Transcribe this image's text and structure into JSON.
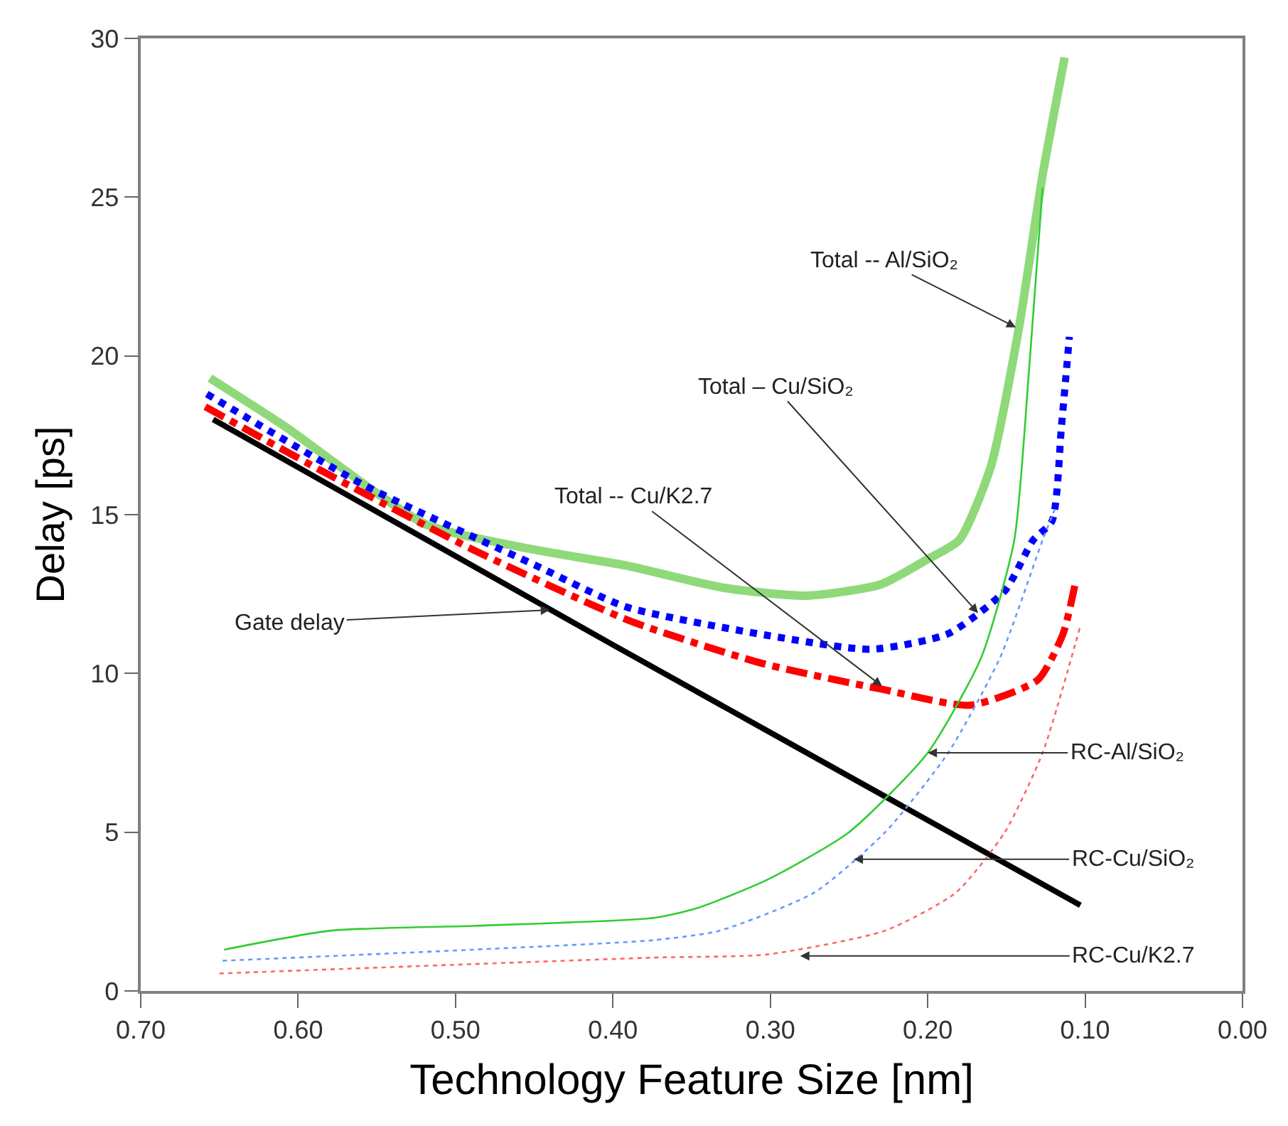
{
  "chart_data": {
    "type": "line",
    "xlabel": "Technology Feature Size [nm]",
    "ylabel": "Delay [ps]",
    "xlim": [
      0.7,
      0.0
    ],
    "ylim": [
      0,
      30
    ],
    "xticks": [
      {
        "value": 0.7,
        "label": "0.70"
      },
      {
        "value": 0.6,
        "label": "0.60"
      },
      {
        "value": 0.5,
        "label": "0.50"
      },
      {
        "value": 0.4,
        "label": "0.40"
      },
      {
        "value": 0.3,
        "label": "0.30"
      },
      {
        "value": 0.2,
        "label": "0.20"
      },
      {
        "value": 0.1,
        "label": "0.10"
      },
      {
        "value": 0.0,
        "label": "0.00"
      }
    ],
    "yticks": [
      0,
      5,
      10,
      15,
      20,
      25,
      30
    ],
    "marker": "none",
    "series": [
      {
        "color": "#000000",
        "line_style": "solid",
        "x": [
          0.654,
          0.4,
          0.103
        ],
        "values": [
          18.0,
          10.9,
          2.7
        ]
      },
      {
        "color": "#8fd97a",
        "line_style": "solid",
        "x": [
          0.656,
          0.609,
          0.519,
          0.45,
          0.392,
          0.33,
          0.277,
          0.23,
          0.2,
          0.18,
          0.16,
          0.142,
          0.127,
          0.113
        ],
        "values": [
          19.3,
          17.8,
          14.7,
          13.9,
          13.4,
          12.7,
          12.45,
          12.8,
          13.6,
          14.2,
          16.5,
          20.9,
          25.7,
          29.4
        ]
      },
      {
        "color": "#0000ff",
        "line_style": "dotted",
        "x": [
          0.658,
          0.557,
          0.449,
          0.392,
          0.302,
          0.236,
          0.187,
          0.151,
          0.133,
          0.121,
          0.115,
          0.11
        ],
        "values": [
          18.8,
          15.9,
          13.4,
          12.1,
          11.2,
          10.76,
          11.25,
          12.6,
          14.2,
          14.8,
          17.8,
          20.6
        ]
      },
      {
        "color": "#ff0000",
        "line_style": "dashdot",
        "x": [
          0.659,
          0.582,
          0.489,
          0.389,
          0.304,
          0.229,
          0.173,
          0.13,
          0.114,
          0.106
        ],
        "values": [
          18.4,
          16.3,
          13.9,
          11.65,
          10.3,
          9.5,
          9.0,
          9.8,
          11.25,
          12.9
        ]
      },
      {
        "color": "#33cc33",
        "line_style": "solid",
        "x": [
          0.647,
          0.579,
          0.489,
          0.374,
          0.347,
          0.302,
          0.25,
          0.2,
          0.166,
          0.145,
          0.136,
          0.127
        ],
        "values": [
          1.3,
          1.9,
          2.05,
          2.3,
          2.6,
          3.5,
          5.0,
          7.5,
          10.5,
          14.2,
          19.3,
          25.3
        ]
      },
      {
        "color": "#6699ff",
        "line_style": "dotted",
        "x": [
          0.648,
          0.489,
          0.374,
          0.332,
          0.272,
          0.227,
          0.187,
          0.154,
          0.127,
          0.119
        ],
        "values": [
          0.95,
          1.3,
          1.6,
          1.9,
          3.1,
          5.0,
          7.5,
          10.5,
          14.2,
          15.2
        ]
      },
      {
        "color": "#ff6666",
        "line_style": "dotted",
        "x": [
          0.65,
          0.374,
          0.302,
          0.227,
          0.182,
          0.151,
          0.127,
          0.103
        ],
        "values": [
          0.55,
          1.05,
          1.15,
          1.9,
          3.1,
          5.0,
          7.5,
          11.5
        ]
      }
    ],
    "annotations": [
      {
        "text": "Total -- Al/SiO₂",
        "x": 0.144,
        "y": 20.9
      },
      {
        "text": "Total – Cu/SiO₂",
        "x": 0.168,
        "y": 11.9
      },
      {
        "text": "Total -- Cu/K2.7",
        "x": 0.229,
        "y": 9.6
      },
      {
        "text": "Gate delay",
        "x": 0.44,
        "y": 12.0
      },
      {
        "text": "RC-Al/SiO₂",
        "x": 0.2,
        "y": 7.5
      },
      {
        "text": "RC-Cu/SiO₂",
        "x": 0.247,
        "y": 4.15
      },
      {
        "text": "RC-Cu/K2.7",
        "x": 0.281,
        "y": 1.1
      }
    ]
  }
}
